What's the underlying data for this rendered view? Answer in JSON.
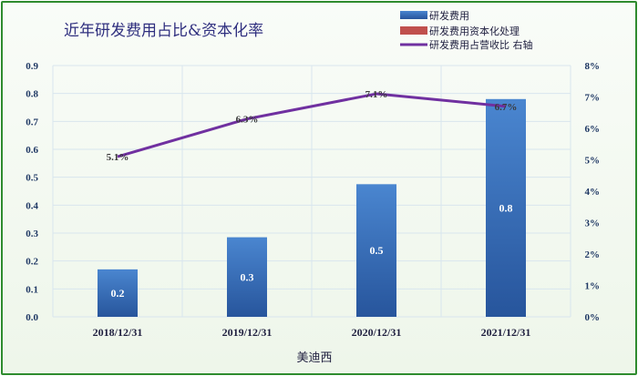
{
  "chart_data": {
    "type": "bar",
    "title": "近年研发费用占比&资本化率",
    "xlabel": "美迪西",
    "categories": [
      "2018/12/31",
      "2019/12/31",
      "2020/12/31",
      "2021/12/31"
    ],
    "series": [
      {
        "name": "研发费用",
        "type": "bar",
        "axis": "left",
        "color": "#3a72c0",
        "values": [
          0.17,
          0.285,
          0.475,
          0.78
        ],
        "labels": [
          "0.2",
          "0.3",
          "0.5",
          "0.8"
        ]
      },
      {
        "name": "研发费用资本化处理",
        "type": "bar",
        "axis": "left",
        "color": "#c0504d",
        "values": [
          0,
          0,
          0,
          0
        ]
      },
      {
        "name": "研发费用占营收比 右轴",
        "type": "line",
        "axis": "right",
        "color": "#7030a0",
        "values": [
          5.1,
          6.3,
          7.1,
          6.7
        ],
        "labels": [
          "5.1%",
          "6.3%",
          "7.1%",
          "6.7%"
        ]
      }
    ],
    "ylim": [
      0,
      0.9
    ],
    "y_ticks": [
      "0.0",
      "0.1",
      "0.2",
      "0.3",
      "0.4",
      "0.5",
      "0.6",
      "0.7",
      "0.8",
      "0.9"
    ],
    "y2lim": [
      0,
      8
    ],
    "y2_ticks": [
      "0%",
      "1%",
      "2%",
      "3%",
      "4%",
      "5%",
      "6%",
      "7%",
      "8%"
    ],
    "grid": true,
    "legend_position": "top-right"
  }
}
